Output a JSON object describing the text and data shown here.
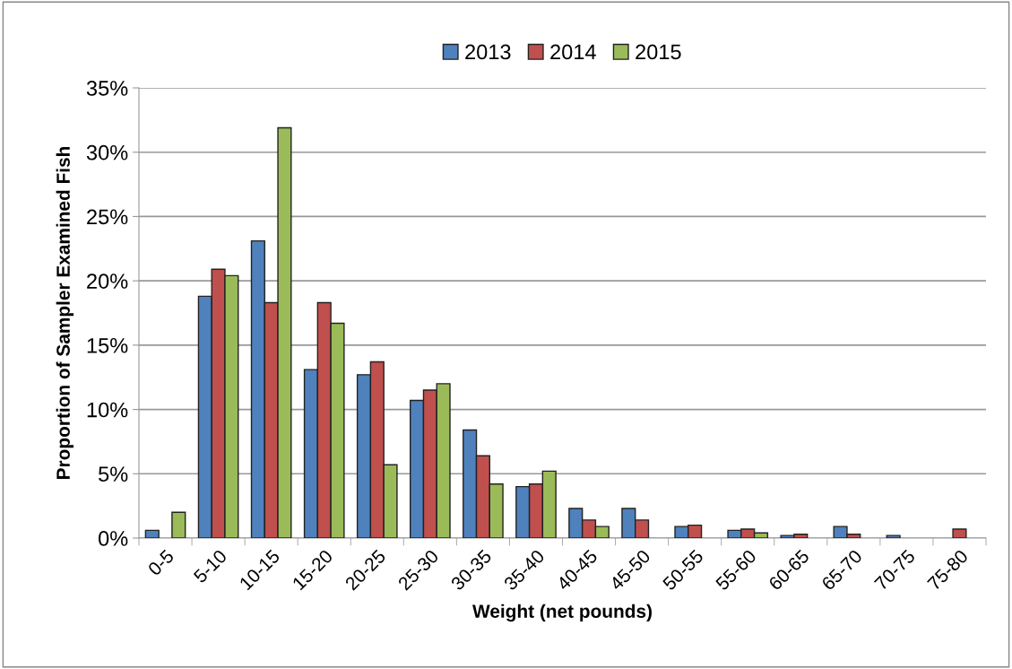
{
  "chart_data": {
    "type": "bar",
    "xlabel": "Weight (net pounds)",
    "ylabel": "Proportion of Sampler Examined Fish",
    "categories": [
      "0-5",
      "5-10",
      "10-15",
      "15-20",
      "20-25",
      "25-30",
      "30-35",
      "35-40",
      "40-45",
      "45-50",
      "50-55",
      "55-60",
      "60-65",
      "65-70",
      "70-75",
      "75-80"
    ],
    "series": [
      {
        "name": "2013",
        "color": "#4f81bd",
        "values": [
          0.6,
          18.8,
          23.1,
          13.1,
          12.7,
          10.7,
          8.4,
          4.0,
          2.3,
          2.3,
          0.9,
          0.6,
          0.2,
          0.9,
          0.2,
          null
        ]
      },
      {
        "name": "2014",
        "color": "#c0504d",
        "values": [
          null,
          20.9,
          18.3,
          18.3,
          13.7,
          11.5,
          6.4,
          4.2,
          1.4,
          1.4,
          1.0,
          0.7,
          0.3,
          0.3,
          null,
          0.7
        ]
      },
      {
        "name": "2015",
        "color": "#9bbb59",
        "values": [
          2.0,
          20.4,
          31.9,
          16.7,
          5.7,
          12.0,
          4.2,
          5.2,
          0.9,
          null,
          null,
          0.4,
          null,
          null,
          null,
          null
        ]
      }
    ],
    "ylim": [
      0,
      35
    ],
    "yticks": [
      {
        "value": 0,
        "label": "0%"
      },
      {
        "value": 5,
        "label": "5%"
      },
      {
        "value": 10,
        "label": "10%"
      },
      {
        "value": 15,
        "label": "15%"
      },
      {
        "value": 20,
        "label": "20%"
      },
      {
        "value": 25,
        "label": "25%"
      },
      {
        "value": 30,
        "label": "30%"
      },
      {
        "value": 35,
        "label": "35%"
      }
    ],
    "grid": "y",
    "legend": "top"
  }
}
